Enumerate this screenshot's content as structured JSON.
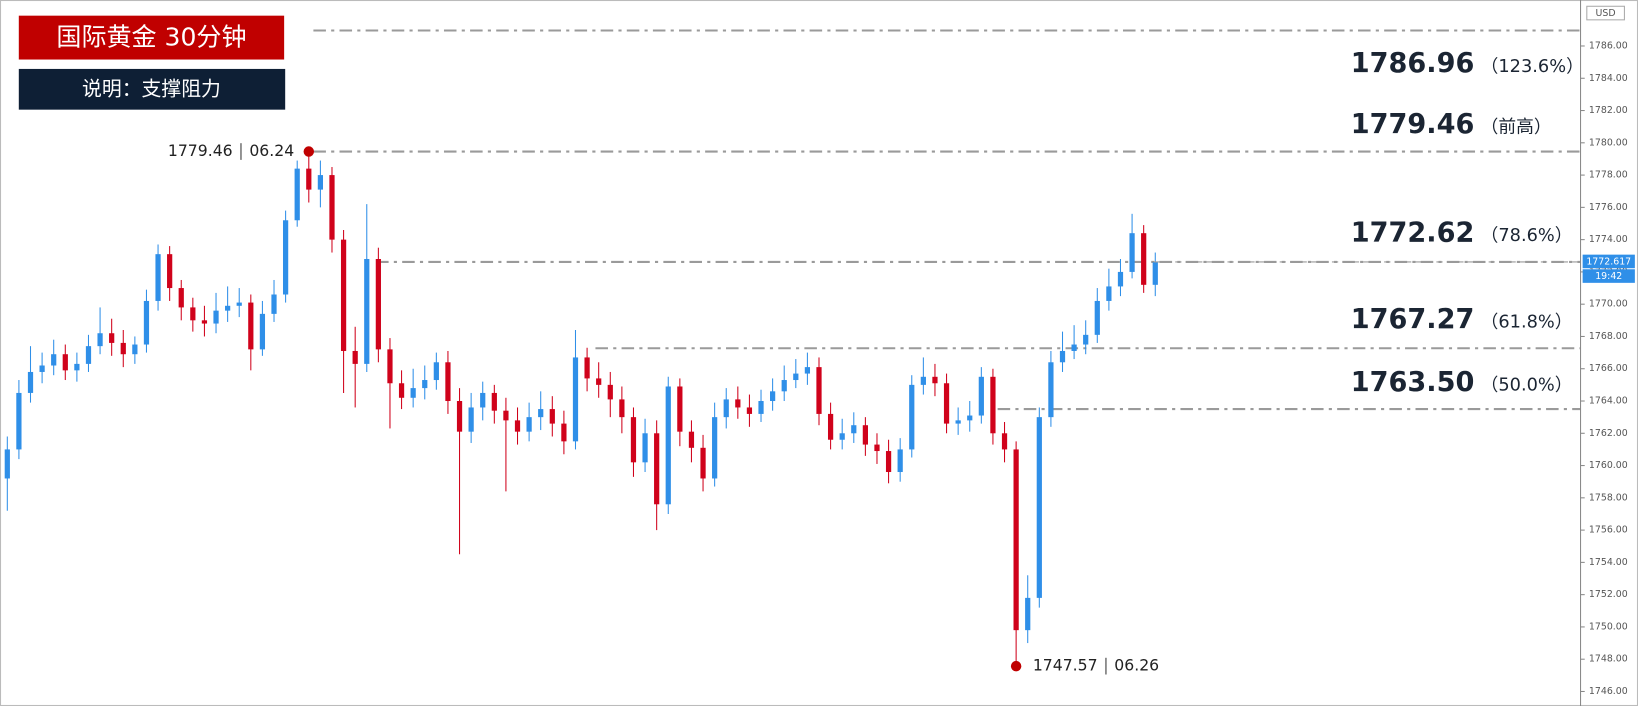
{
  "chart_data": {
    "type": "candlestick",
    "title": "国际黄金  30分钟",
    "subtitle": "说明：支撑阻力",
    "axis_unit": "USD",
    "open": [
      1759.2,
      1761.0,
      1764.5,
      1765.8,
      1766.2,
      1766.9,
      1765.9,
      1766.3,
      1767.4,
      1768.2,
      1767.6,
      1766.9,
      1767.5,
      1770.2,
      1773.1,
      1771.0,
      1769.8,
      1769.0,
      1768.8,
      1769.6,
      1769.9,
      1770.1,
      1767.2,
      1769.4,
      1770.6,
      1775.2,
      1778.4,
      1777.1,
      1778.0,
      1774.0,
      1767.1,
      1766.3,
      1772.8,
      1767.2,
      1765.1,
      1764.2,
      1764.8,
      1765.3,
      1766.4,
      1764.0,
      1762.1,
      1763.6,
      1764.5,
      1763.4,
      1762.8,
      1762.1,
      1763.0,
      1763.5,
      1762.6,
      1761.5,
      1766.7,
      1765.4,
      1765.0,
      1764.1,
      1763.0,
      1760.2,
      1762.0,
      1757.6,
      1764.9,
      1762.1,
      1761.1,
      1759.2,
      1763.0,
      1764.1,
      1763.6,
      1763.2,
      1764.0,
      1764.6,
      1765.3,
      1765.7,
      1766.1,
      1763.2,
      1761.6,
      1762.0,
      1762.5,
      1761.3,
      1760.9,
      1759.6,
      1761.0,
      1765.0,
      1765.5,
      1765.1,
      1762.6,
      1762.8,
      1763.1,
      1765.5,
      1762.0,
      1761.0,
      1749.8,
      1751.8,
      1763.0,
      1766.4,
      1767.1,
      1767.5,
      1768.1,
      1770.2,
      1771.1,
      1772.0,
      1774.4,
      1771.2
    ],
    "high": [
      1761.8,
      1765.3,
      1767.4,
      1767.0,
      1767.8,
      1767.5,
      1767.0,
      1768.1,
      1769.8,
      1769.1,
      1768.4,
      1768.0,
      1770.9,
      1773.7,
      1773.6,
      1771.5,
      1770.4,
      1769.9,
      1770.7,
      1771.1,
      1771.0,
      1770.6,
      1770.2,
      1771.5,
      1775.8,
      1778.9,
      1779.46,
      1778.9,
      1778.5,
      1774.6,
      1768.6,
      1776.2,
      1773.5,
      1767.9,
      1765.9,
      1766.0,
      1766.2,
      1767.0,
      1767.1,
      1764.8,
      1764.5,
      1765.2,
      1765.0,
      1764.2,
      1763.6,
      1763.9,
      1764.6,
      1764.3,
      1763.4,
      1768.4,
      1767.3,
      1766.4,
      1765.8,
      1764.9,
      1763.6,
      1762.9,
      1762.8,
      1765.5,
      1765.4,
      1762.8,
      1761.9,
      1763.9,
      1764.8,
      1764.9,
      1764.4,
      1764.7,
      1765.4,
      1766.2,
      1766.6,
      1767.0,
      1766.7,
      1763.9,
      1762.9,
      1763.3,
      1763.0,
      1762.0,
      1761.6,
      1761.7,
      1765.6,
      1766.7,
      1766.3,
      1765.7,
      1763.6,
      1764.0,
      1766.1,
      1766.0,
      1762.7,
      1761.5,
      1753.2,
      1763.6,
      1767.1,
      1768.3,
      1768.7,
      1769.0,
      1771.0,
      1772.2,
      1772.8,
      1775.6,
      1774.9,
      1773.2
    ],
    "low": [
      1757.2,
      1760.4,
      1763.9,
      1765.1,
      1765.6,
      1765.3,
      1765.2,
      1765.8,
      1766.9,
      1766.8,
      1766.1,
      1766.3,
      1767.0,
      1769.6,
      1770.2,
      1769.0,
      1768.3,
      1768.0,
      1768.2,
      1768.9,
      1769.2,
      1765.9,
      1766.8,
      1768.9,
      1770.1,
      1774.8,
      1776.3,
      1776.0,
      1773.2,
      1764.5,
      1763.6,
      1765.8,
      1766.4,
      1762.3,
      1763.5,
      1763.6,
      1764.1,
      1764.7,
      1763.2,
      1754.5,
      1761.4,
      1762.8,
      1762.6,
      1758.4,
      1761.3,
      1761.5,
      1762.2,
      1761.8,
      1760.7,
      1761.0,
      1764.6,
      1764.2,
      1763.0,
      1762.0,
      1759.3,
      1759.6,
      1756.0,
      1757.0,
      1761.2,
      1760.2,
      1758.4,
      1758.7,
      1762.3,
      1762.9,
      1762.4,
      1762.7,
      1763.4,
      1764.0,
      1764.8,
      1765.0,
      1762.5,
      1761.0,
      1761.0,
      1761.4,
      1760.6,
      1760.1,
      1758.9,
      1759.0,
      1760.5,
      1764.4,
      1764.3,
      1762.0,
      1761.9,
      1762.1,
      1762.6,
      1761.3,
      1760.2,
      1747.57,
      1749.0,
      1751.2,
      1762.4,
      1765.8,
      1766.6,
      1766.9,
      1767.6,
      1769.6,
      1770.5,
      1771.6,
      1770.7,
      1770.5
    ],
    "close": [
      1761.0,
      1764.5,
      1765.8,
      1766.2,
      1766.9,
      1765.9,
      1766.3,
      1767.4,
      1768.2,
      1767.6,
      1766.9,
      1767.5,
      1770.2,
      1773.1,
      1771.0,
      1769.8,
      1769.0,
      1768.8,
      1769.6,
      1769.9,
      1770.1,
      1767.2,
      1769.4,
      1770.6,
      1775.2,
      1778.4,
      1777.1,
      1778.0,
      1774.0,
      1767.1,
      1766.3,
      1772.8,
      1767.2,
      1765.1,
      1764.2,
      1764.8,
      1765.3,
      1766.4,
      1764.0,
      1762.1,
      1763.6,
      1764.5,
      1763.4,
      1762.8,
      1762.1,
      1763.0,
      1763.5,
      1762.6,
      1761.5,
      1766.7,
      1765.4,
      1765.0,
      1764.1,
      1763.0,
      1760.2,
      1762.0,
      1757.6,
      1764.9,
      1762.1,
      1761.1,
      1759.2,
      1763.0,
      1764.1,
      1763.6,
      1763.2,
      1764.0,
      1764.6,
      1765.3,
      1765.7,
      1766.1,
      1763.2,
      1761.6,
      1762.0,
      1762.5,
      1761.3,
      1760.9,
      1759.6,
      1761.0,
      1765.0,
      1765.5,
      1765.1,
      1762.6,
      1762.8,
      1763.1,
      1765.5,
      1762.0,
      1761.0,
      1749.8,
      1751.8,
      1763.0,
      1766.4,
      1767.1,
      1767.5,
      1768.1,
      1770.2,
      1771.1,
      1772.0,
      1774.4,
      1771.2,
      1772.6
    ],
    "up_color": "#2f8fe8",
    "down_color": "#d0021b",
    "ylim": [
      1745.1,
      1788.85
    ],
    "yticks": [
      {
        "value": 1746,
        "label": "1746.00"
      },
      {
        "value": 1748,
        "label": "1748.00"
      },
      {
        "value": 1750,
        "label": "1750.00"
      },
      {
        "value": 1752,
        "label": "1752.00"
      },
      {
        "value": 1754,
        "label": "1754.00"
      },
      {
        "value": 1756,
        "label": "1756.00"
      },
      {
        "value": 1758,
        "label": "1758.00"
      },
      {
        "value": 1760,
        "label": "1760.00"
      },
      {
        "value": 1762,
        "label": "1762.00"
      },
      {
        "value": 1764,
        "label": "1764.00"
      },
      {
        "value": 1766,
        "label": "1766.00"
      },
      {
        "value": 1768,
        "label": "1768.00"
      },
      {
        "value": 1770,
        "label": "1770.00"
      },
      {
        "value": 1772,
        "label": "1772.00"
      },
      {
        "value": 1774,
        "label": "1774.00"
      },
      {
        "value": 1776,
        "label": "1776.00"
      },
      {
        "value": 1778,
        "label": "1778.00"
      },
      {
        "value": 1780,
        "label": "1780.00"
      },
      {
        "value": 1782,
        "label": "1782.00"
      },
      {
        "value": 1784,
        "label": "1784.00"
      },
      {
        "value": 1786,
        "label": "1786.00"
      }
    ],
    "levels": [
      {
        "value": 1786.96,
        "note": "（123.6%）"
      },
      {
        "value": 1779.46,
        "note": "（前高）"
      },
      {
        "value": 1772.62,
        "note": "（78.6%）"
      },
      {
        "value": 1767.27,
        "note": "（61.8%）"
      },
      {
        "value": 1763.5,
        "value_label": "1763.50",
        "note": "（50.0%）"
      }
    ],
    "annotations": [
      {
        "value": 1779.46,
        "label": "06.24"
      },
      {
        "value": 1747.57,
        "label": "06.26"
      }
    ],
    "current_price": 1772.617,
    "countdown": "19:42"
  }
}
